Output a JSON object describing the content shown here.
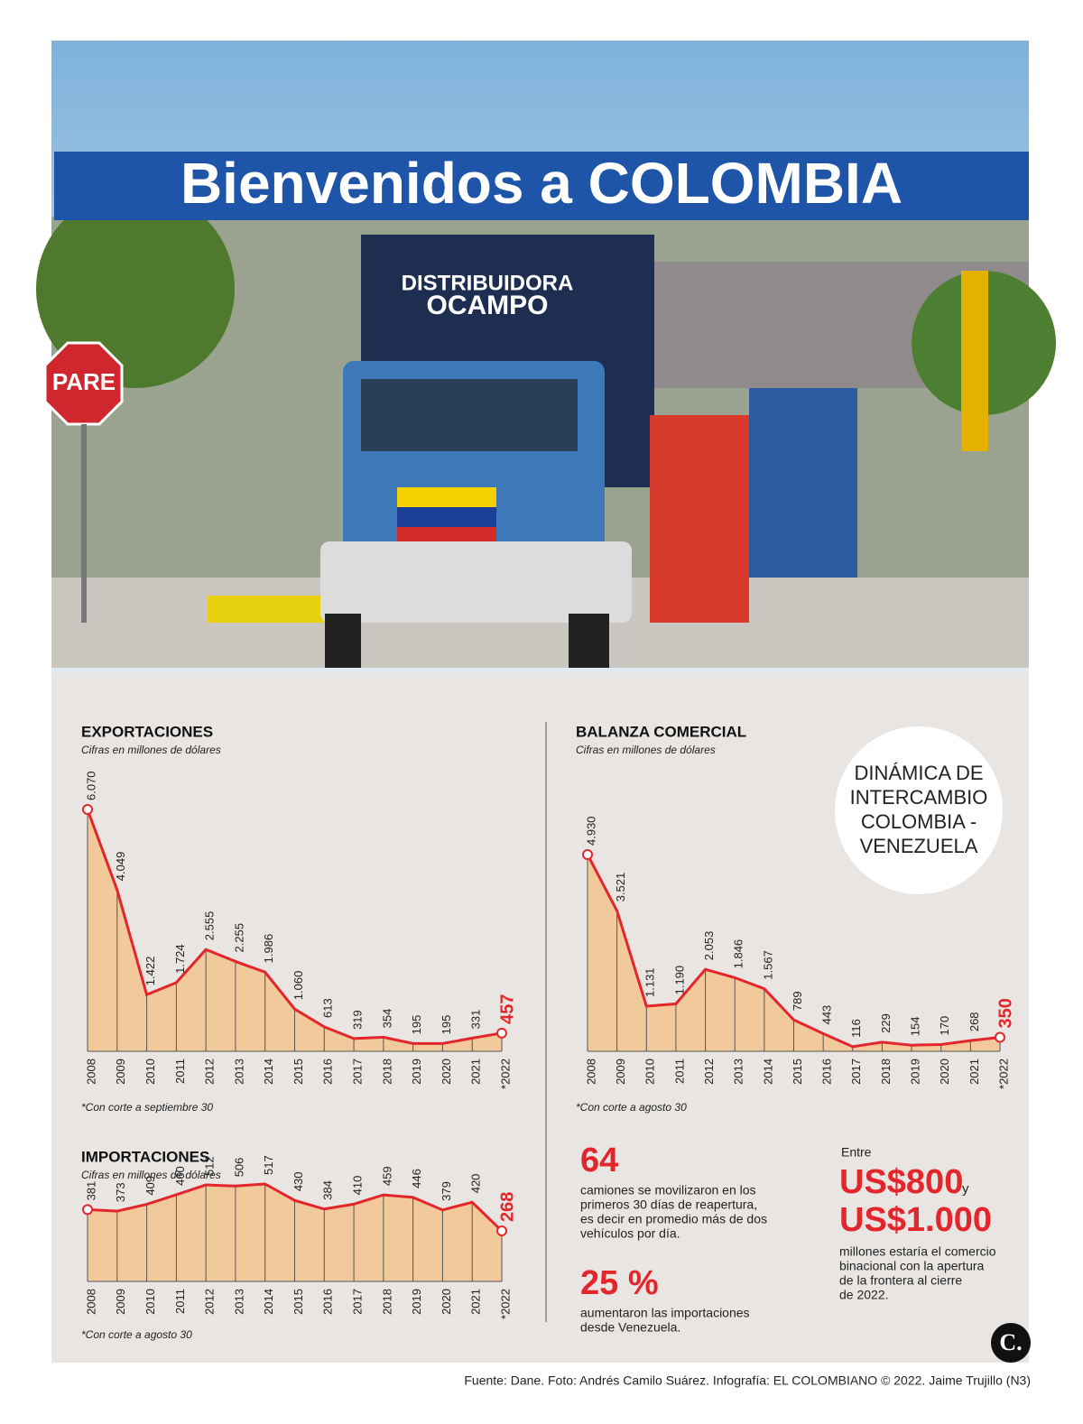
{
  "photo": {
    "banner": "Bienvenidos a COLOMBIA",
    "stop_sign": "PARE",
    "truck_brand": "DISTRIBUIDORA",
    "truck_name": "OCAMPO"
  },
  "chart_data": [
    {
      "type": "area",
      "title": "EXPORTACIONES",
      "subtitle": "Cifras en millones de dólares",
      "note": "*Con corte a septiembre 30",
      "categories": [
        "2008",
        "2009",
        "2010",
        "2011",
        "2012",
        "2013",
        "2014",
        "2015",
        "2016",
        "2017",
        "2018",
        "2019",
        "2020",
        "2021",
        "*2022"
      ],
      "values": [
        6070,
        4049,
        1422,
        1724,
        2555,
        2255,
        1986,
        1060,
        613,
        319,
        354,
        195,
        195,
        331,
        457
      ],
      "value_labels": [
        "6.070",
        "4.049",
        "1.422",
        "1.724",
        "2.555",
        "2.255",
        "1.986",
        "1.060",
        "613",
        "319",
        "354",
        "195",
        "195",
        "331",
        "457"
      ],
      "color": "#e3262b",
      "fill": "#f2c99a"
    },
    {
      "type": "area",
      "title": "BALANZA COMERCIAL",
      "subtitle": "Cifras en millones de dólares",
      "note": "*Con corte a agosto 30",
      "categories": [
        "2008",
        "2009",
        "2010",
        "2011",
        "2012",
        "2013",
        "2014",
        "2015",
        "2016",
        "2017",
        "2018",
        "2019",
        "2020",
        "2021",
        "*2022"
      ],
      "values": [
        4930,
        3521,
        1131,
        1190,
        2053,
        1846,
        1567,
        789,
        443,
        116,
        229,
        154,
        170,
        268,
        350
      ],
      "value_labels": [
        "4.930",
        "3.521",
        "1.131",
        "1.190",
        "2.053",
        "1.846",
        "1.567",
        "789",
        "443",
        "116",
        "229",
        "154",
        "170",
        "268",
        "350"
      ],
      "color": "#e3262b",
      "fill": "#f2c99a"
    },
    {
      "type": "area",
      "title": "IMPORTACIONES",
      "subtitle": "Cifras en millones de dólares",
      "note": "*Con corte a agosto 30",
      "categories": [
        "2008",
        "2009",
        "2010",
        "2011",
        "2012",
        "2013",
        "2014",
        "2015",
        "2016",
        "2017",
        "2018",
        "2019",
        "2020",
        "2021",
        "*2022"
      ],
      "values": [
        381,
        373,
        409,
        460,
        512,
        506,
        517,
        430,
        384,
        410,
        459,
        446,
        379,
        420,
        268
      ],
      "color": "#e3262b",
      "fill": "#f2c99a"
    }
  ],
  "badge": {
    "lines": [
      "DINÁMICA DE",
      "INTERCAMBIO",
      "COLOMBIA -",
      "VENEZUELA"
    ]
  },
  "stats": {
    "trucks": {
      "number": "64",
      "lines": [
        "camiones se movilizaron en los",
        "primeros 30 días de reapertura,",
        "es decir en promedio más de dos",
        "vehículos por día."
      ]
    },
    "imports": {
      "number": "25 %",
      "lines": [
        "aumentaron las importaciones",
        "desde Venezuela."
      ]
    },
    "trade": {
      "intro": "Entre",
      "low": "US$800",
      "and": "y",
      "high": "US$1.000",
      "lines": [
        "millones estaría el comercio",
        "binacional con la apertura",
        "de la frontera al cierre",
        "de 2022."
      ]
    }
  },
  "logo": "C.",
  "source": "Fuente: Dane. Foto: Andrés Camilo Suárez. Infografía: EL COLOMBIANO © 2022. Jaime Trujillo (N3)"
}
